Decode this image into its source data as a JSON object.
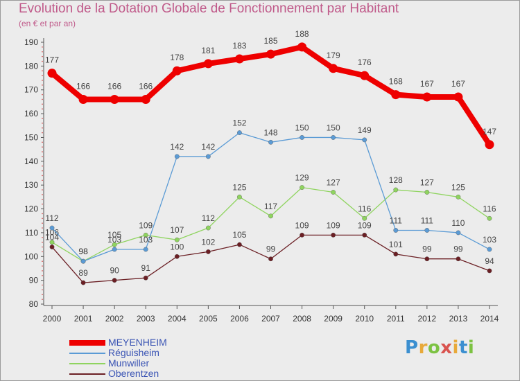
{
  "chart_data": {
    "type": "line",
    "title": "Evolution de la Dotation Globale de Fonctionnement par Habitant",
    "subtitle": "(en € et par an)",
    "x": [
      "2000",
      "2001",
      "2002",
      "2003",
      "2004",
      "2005",
      "2006",
      "2007",
      "2008",
      "2009",
      "2010",
      "2011",
      "2012",
      "2013",
      "2014"
    ],
    "ylim": [
      80,
      190
    ],
    "yticks": [
      80,
      90,
      100,
      110,
      120,
      130,
      140,
      150,
      160,
      170,
      180,
      190
    ],
    "grid": false,
    "legend_position": "bottom-left",
    "series": [
      {
        "name": "MEYENHEIM",
        "color": "#ee0000",
        "values": [
          177,
          166,
          166,
          166,
          178,
          181,
          183,
          185,
          188,
          179,
          176,
          168,
          167,
          167,
          147
        ]
      },
      {
        "name": "Réguisheim",
        "color": "#5b9bd5",
        "values": [
          112,
          98,
          103,
          103,
          142,
          142,
          152,
          148,
          150,
          150,
          149,
          111,
          111,
          110,
          103
        ]
      },
      {
        "name": "Munwiller",
        "color": "#8fd45f",
        "values": [
          106,
          98,
          105,
          109,
          107,
          112,
          125,
          117,
          129,
          127,
          116,
          128,
          127,
          125,
          116
        ]
      },
      {
        "name": "Oberentzen",
        "color": "#6b1f24",
        "values": [
          104,
          89,
          90,
          91,
          100,
          102,
          105,
          99,
          109,
          109,
          109,
          101,
          99,
          99,
          94
        ]
      }
    ]
  },
  "logo_text": "Proxiti"
}
